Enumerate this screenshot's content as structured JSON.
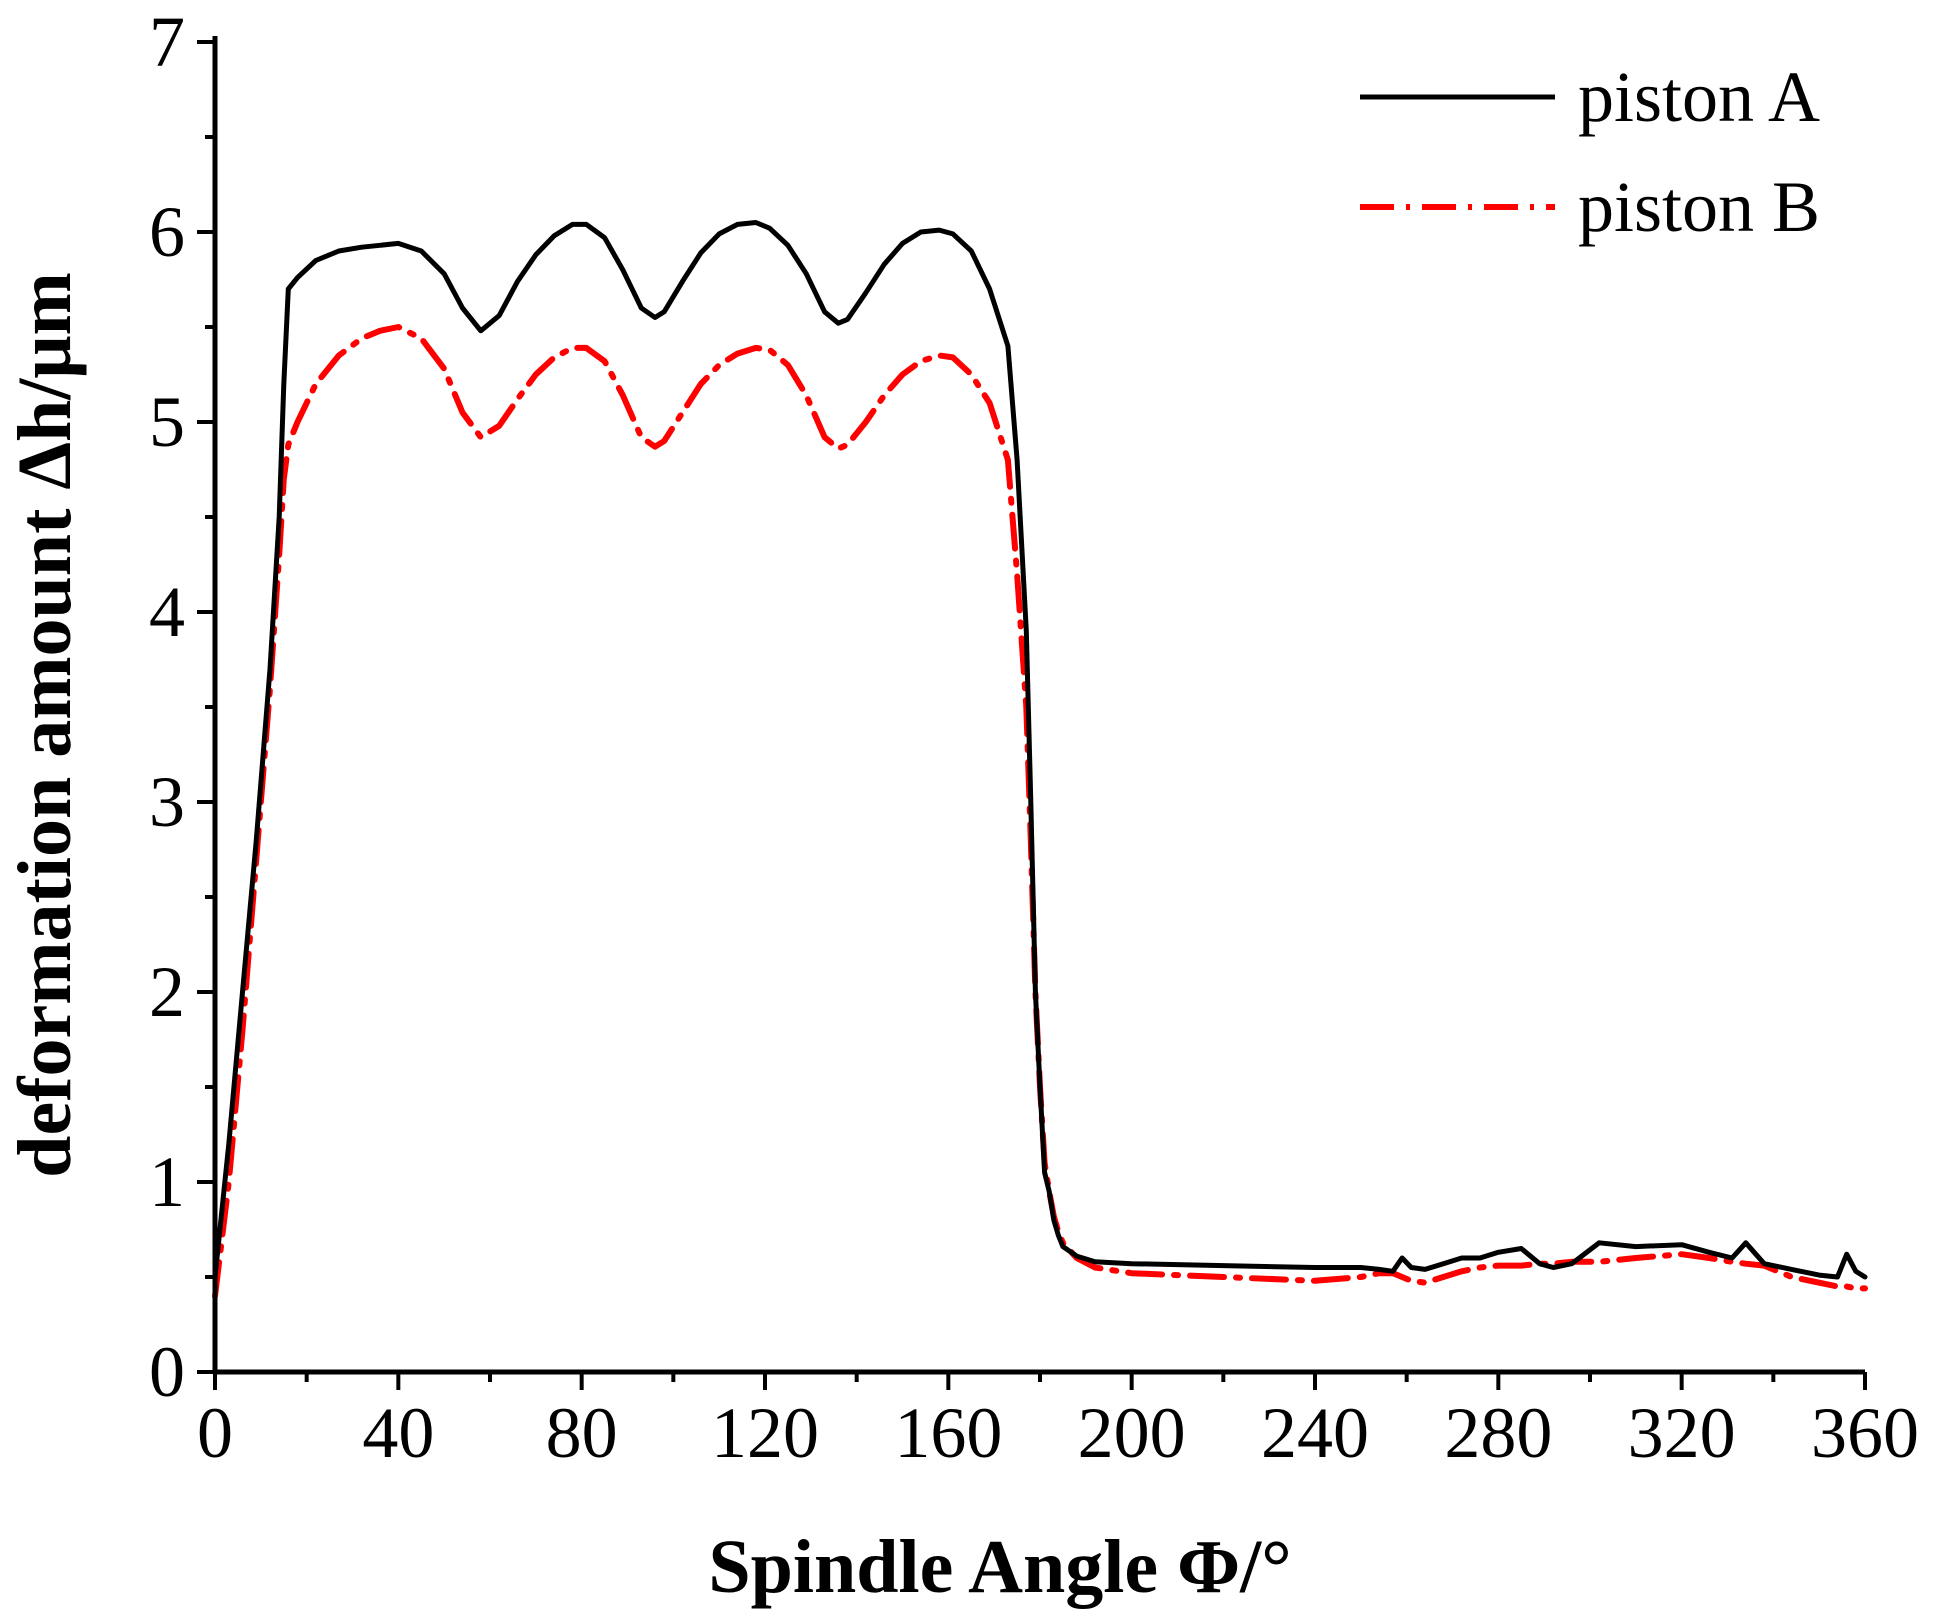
{
  "chart_data": {
    "type": "line",
    "title": "",
    "xlabel": "Spindle Angle Φ/°",
    "ylabel": "deformation amount Δh/μm",
    "xlim": [
      0,
      360
    ],
    "ylim": [
      0,
      7
    ],
    "xticks": [
      0,
      40,
      80,
      120,
      160,
      200,
      240,
      280,
      320,
      360
    ],
    "yticks": [
      0,
      1,
      2,
      3,
      4,
      5,
      6,
      7
    ],
    "grid": false,
    "legend_position": "top-right",
    "series": [
      {
        "name": "piston A",
        "color": "#000000",
        "style": "solid",
        "x": [
          0,
          3,
          6,
          9,
          12,
          14,
          15,
          16,
          18,
          22,
          27,
          32,
          36,
          40,
          45,
          50,
          54,
          58,
          62,
          66,
          70,
          74,
          78,
          81,
          85,
          89,
          93,
          96,
          98,
          102,
          106,
          110,
          114,
          118,
          121,
          125,
          129,
          133,
          136,
          138,
          142,
          146,
          150,
          154,
          158,
          161,
          165,
          169,
          173,
          175,
          177,
          178,
          179,
          180,
          181,
          182,
          183,
          184,
          185,
          188,
          192,
          200,
          220,
          240,
          250,
          254,
          257,
          259,
          261,
          264,
          268,
          272,
          276,
          280,
          285,
          289,
          292,
          296,
          302,
          310,
          320,
          326,
          331,
          334,
          338,
          344,
          350,
          354,
          356,
          358,
          360
        ],
        "values": [
          0.5,
          1.2,
          2.0,
          2.8,
          3.7,
          4.5,
          5.2,
          5.7,
          5.76,
          5.85,
          5.9,
          5.92,
          5.93,
          5.94,
          5.9,
          5.78,
          5.6,
          5.48,
          5.56,
          5.74,
          5.88,
          5.98,
          6.04,
          6.04,
          5.97,
          5.8,
          5.6,
          5.55,
          5.58,
          5.74,
          5.89,
          5.99,
          6.04,
          6.05,
          6.02,
          5.93,
          5.78,
          5.58,
          5.52,
          5.54,
          5.68,
          5.83,
          5.94,
          6.0,
          6.01,
          5.99,
          5.9,
          5.7,
          5.4,
          4.8,
          3.9,
          3.0,
          2.0,
          1.5,
          1.05,
          0.95,
          0.8,
          0.72,
          0.66,
          0.61,
          0.58,
          0.57,
          0.56,
          0.55,
          0.55,
          0.54,
          0.53,
          0.6,
          0.55,
          0.54,
          0.57,
          0.6,
          0.6,
          0.63,
          0.65,
          0.57,
          0.55,
          0.57,
          0.68,
          0.66,
          0.67,
          0.63,
          0.6,
          0.68,
          0.57,
          0.54,
          0.51,
          0.5,
          0.62,
          0.53,
          0.5
        ]
      },
      {
        "name": "piston B",
        "color": "#ff0000",
        "style": "dash-dot",
        "x": [
          0,
          3,
          6,
          9,
          12,
          14,
          15,
          16,
          18,
          22,
          27,
          32,
          36,
          40,
          45,
          50,
          54,
          58,
          62,
          66,
          70,
          74,
          78,
          81,
          85,
          89,
          93,
          96,
          98,
          102,
          106,
          110,
          114,
          118,
          121,
          125,
          129,
          133,
          136,
          138,
          142,
          146,
          150,
          154,
          158,
          161,
          165,
          169,
          173,
          175,
          177,
          178,
          179,
          180,
          181,
          182,
          183,
          184,
          185,
          188,
          192,
          200,
          220,
          240,
          250,
          254,
          257,
          259,
          261,
          264,
          268,
          272,
          276,
          280,
          285,
          289,
          292,
          296,
          302,
          310,
          320,
          326,
          331,
          334,
          338,
          344,
          350,
          354,
          356,
          358,
          360
        ],
        "values": [
          0.4,
          1.0,
          1.8,
          2.7,
          3.6,
          4.3,
          4.7,
          4.88,
          5.0,
          5.2,
          5.35,
          5.44,
          5.48,
          5.5,
          5.44,
          5.28,
          5.05,
          4.92,
          4.98,
          5.12,
          5.25,
          5.34,
          5.39,
          5.39,
          5.32,
          5.14,
          4.92,
          4.87,
          4.9,
          5.05,
          5.2,
          5.3,
          5.36,
          5.39,
          5.38,
          5.3,
          5.14,
          4.92,
          4.86,
          4.88,
          5.0,
          5.14,
          5.25,
          5.32,
          5.35,
          5.34,
          5.25,
          5.1,
          4.8,
          4.2,
          3.5,
          2.8,
          2.0,
          1.5,
          1.1,
          0.95,
          0.82,
          0.74,
          0.68,
          0.6,
          0.55,
          0.52,
          0.5,
          0.48,
          0.5,
          0.52,
          0.52,
          0.5,
          0.48,
          0.47,
          0.5,
          0.53,
          0.55,
          0.56,
          0.56,
          0.57,
          0.57,
          0.58,
          0.58,
          0.6,
          0.62,
          0.6,
          0.58,
          0.57,
          0.56,
          0.5,
          0.47,
          0.45,
          0.45,
          0.44,
          0.44
        ]
      }
    ]
  }
}
